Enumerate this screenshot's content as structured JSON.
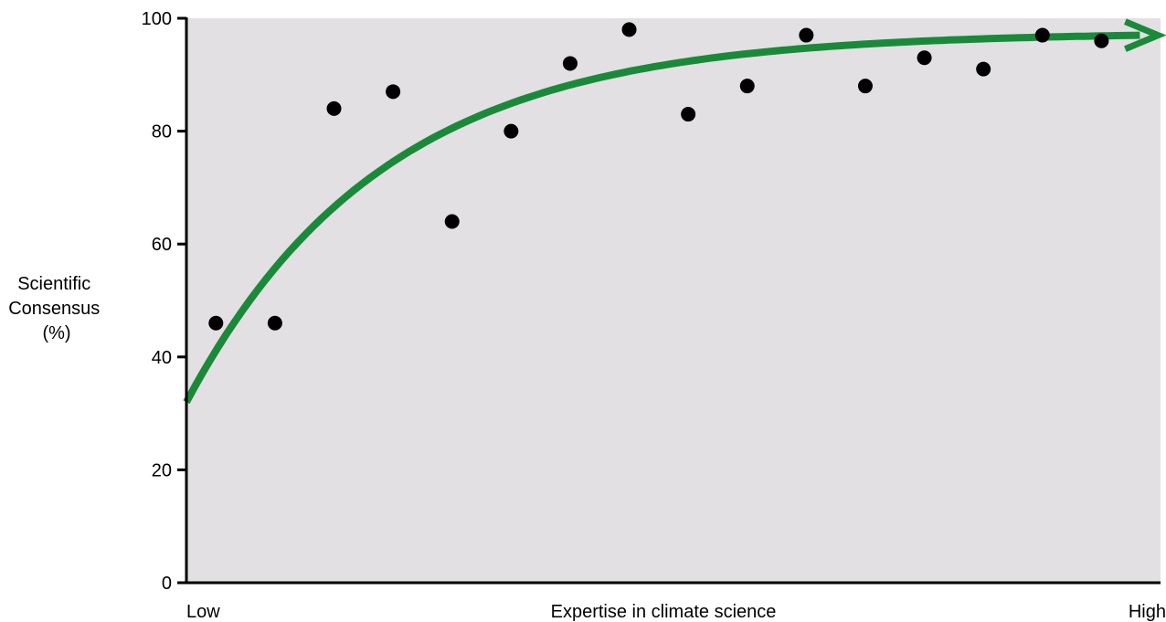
{
  "chart_data": {
    "type": "scatter",
    "title": "",
    "ylabel_lines": [
      "Scientific",
      "Consensus",
      "(%)"
    ],
    "xlabel": "Expertise in climate science",
    "x_low_label": "Low",
    "x_high_label": "High",
    "ylim": [
      0,
      100
    ],
    "yticks": [
      0,
      20,
      40,
      60,
      80,
      100
    ],
    "xlim": [
      0,
      16.5
    ],
    "x": [
      0.5,
      1.5,
      2.5,
      3.5,
      4.5,
      5.5,
      6.5,
      7.5,
      8.5,
      9.5,
      10.5,
      11.5,
      12.5,
      13.5,
      14.5,
      15.5
    ],
    "values": [
      46,
      46,
      84,
      87,
      64,
      80,
      92,
      98,
      83,
      88,
      97,
      88,
      93,
      91,
      97,
      96
    ],
    "trend": {
      "description": "saturating curve with arrow",
      "start": 32,
      "plateau": 97.5,
      "rate": 0.3
    },
    "grid": false,
    "legend": "none",
    "colors": {
      "plot_background": "#e2e0e2",
      "points": "#000000",
      "trend_line": "#1a8a3a",
      "axes": "#000000"
    }
  }
}
